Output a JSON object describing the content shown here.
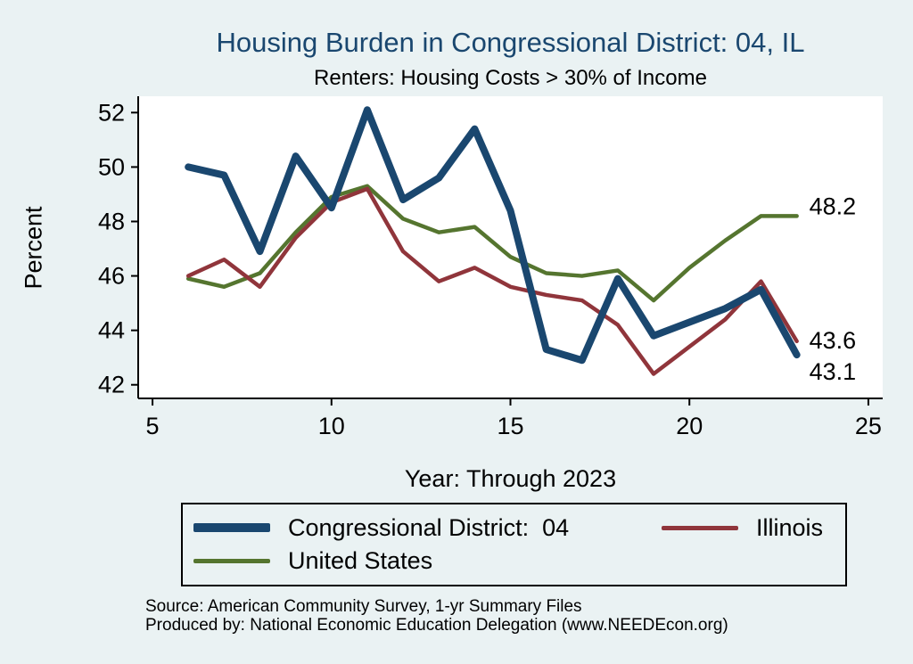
{
  "title": "Housing Burden in Congressional District:  04, IL",
  "subtitle": "Renters: Housing Costs > 30% of Income",
  "chart_data": {
    "type": "line",
    "xlabel": "Year: Through 2023",
    "ylabel": "Percent",
    "x": [
      6,
      7,
      8,
      9,
      10,
      11,
      12,
      13,
      14,
      15,
      16,
      17,
      18,
      19,
      20,
      21,
      22,
      23
    ],
    "x_ticks": [
      5,
      10,
      15,
      20,
      25
    ],
    "y_ticks": [
      42,
      44,
      46,
      48,
      50,
      52
    ],
    "xlim": [
      4.6,
      25.4
    ],
    "ylim": [
      41.5,
      52.6
    ],
    "grid": false,
    "legend_position": "bottom",
    "series": [
      {
        "id": "cd04",
        "name": "Congressional District:  04",
        "color": "#1a476f",
        "line_width": 8,
        "sample_height": 10,
        "end_label": "43.1",
        "end_label_dy": 20,
        "values": [
          50.0,
          49.7,
          46.9,
          50.4,
          48.5,
          52.1,
          48.8,
          49.6,
          51.4,
          48.4,
          43.3,
          42.9,
          45.9,
          43.8,
          44.3,
          44.8,
          45.5,
          43.1
        ]
      },
      {
        "id": "illinois",
        "name": "Illinois",
        "color": "#90353b",
        "line_width": 4.5,
        "sample_height": 5,
        "end_label": "43.6",
        "end_label_dy": 0,
        "values": [
          46.0,
          46.6,
          45.6,
          47.4,
          48.7,
          49.2,
          46.9,
          45.8,
          46.3,
          45.6,
          45.3,
          45.1,
          44.2,
          42.4,
          43.4,
          44.4,
          45.8,
          43.6
        ]
      },
      {
        "id": "us",
        "name": "United States",
        "color": "#55752f",
        "line_width": 4.5,
        "sample_height": 5,
        "end_label": "48.2",
        "end_label_dy": -10,
        "values": [
          45.9,
          45.6,
          46.1,
          47.6,
          48.9,
          49.3,
          48.1,
          47.6,
          47.8,
          46.7,
          46.1,
          46.0,
          46.2,
          45.1,
          46.3,
          47.3,
          48.2,
          48.2
        ]
      }
    ]
  },
  "footer": {
    "source": "Source: American Community Survey, 1-yr Summary Files",
    "produced_by": "Produced by: National Economic Education Delegation (www.NEEDEcon.org)"
  }
}
